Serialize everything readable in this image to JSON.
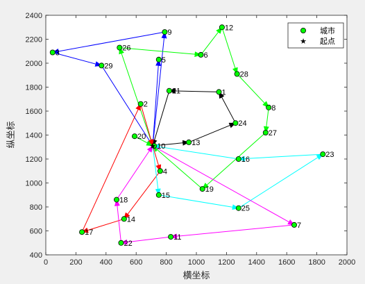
{
  "chart_data": {
    "type": "scatter",
    "title": "",
    "xlabel": "横坐标",
    "ylabel": "纵坐标",
    "xlim": [
      0,
      2000
    ],
    "ylim": [
      400,
      2400
    ],
    "xticks": [
      0,
      200,
      400,
      600,
      800,
      1000,
      1200,
      1400,
      1600,
      1800,
      2000
    ],
    "yticks": [
      400,
      600,
      800,
      1000,
      1200,
      1400,
      1600,
      1800,
      2000,
      2200,
      2400
    ],
    "grid": false,
    "legend": {
      "placement": "top-right",
      "entries": [
        {
          "label": "城市",
          "marker": "circle",
          "color": "#00ff00"
        },
        {
          "label": "起点",
          "marker": "star",
          "color": "#000000"
        }
      ]
    },
    "start": {
      "x": 710,
      "y": 1310
    },
    "cities": [
      {
        "id": "1",
        "x": 1150,
        "y": 1760
      },
      {
        "id": "2",
        "x": 630,
        "y": 1660
      },
      {
        "id": "3",
        "x": 45,
        "y": 2090
      },
      {
        "id": "4",
        "x": 760,
        "y": 1100
      },
      {
        "id": "5",
        "x": 750,
        "y": 2030
      },
      {
        "id": "6",
        "x": 1030,
        "y": 2070
      },
      {
        "id": "7",
        "x": 1650,
        "y": 650
      },
      {
        "id": "8",
        "x": 1480,
        "y": 1630
      },
      {
        "id": "9",
        "x": 790,
        "y": 2260
      },
      {
        "id": "10",
        "x": 720,
        "y": 1310
      },
      {
        "id": "11",
        "x": 830,
        "y": 550
      },
      {
        "id": "12",
        "x": 1170,
        "y": 2300
      },
      {
        "id": "13",
        "x": 950,
        "y": 1340
      },
      {
        "id": "14",
        "x": 520,
        "y": 700
      },
      {
        "id": "15",
        "x": 750,
        "y": 900
      },
      {
        "id": "16",
        "x": 1280,
        "y": 1200
      },
      {
        "id": "17",
        "x": 240,
        "y": 590
      },
      {
        "id": "18",
        "x": 470,
        "y": 860
      },
      {
        "id": "19",
        "x": 1040,
        "y": 950
      },
      {
        "id": "20",
        "x": 590,
        "y": 1390
      },
      {
        "id": "21",
        "x": 820,
        "y": 1770
      },
      {
        "id": "22",
        "x": 500,
        "y": 500
      },
      {
        "id": "23",
        "x": 1840,
        "y": 1240
      },
      {
        "id": "24",
        "x": 1260,
        "y": 1500
      },
      {
        "id": "25",
        "x": 1280,
        "y": 790
      },
      {
        "id": "26",
        "x": 490,
        "y": 2130
      },
      {
        "id": "27",
        "x": 1460,
        "y": 1420
      },
      {
        "id": "28",
        "x": 1270,
        "y": 1910
      },
      {
        "id": "29",
        "x": 370,
        "y": 1980
      }
    ],
    "routes": [
      {
        "color": "#000000",
        "path": [
          [
            710,
            1310
          ],
          [
            950,
            1340
          ]
        ]
      },
      {
        "color": "#000000",
        "path": [
          [
            950,
            1340
          ],
          [
            1260,
            1500
          ]
        ]
      },
      {
        "color": "#000000",
        "path": [
          [
            1260,
            1500
          ],
          [
            1150,
            1760
          ]
        ]
      },
      {
        "color": "#000000",
        "path": [
          [
            1150,
            1760
          ],
          [
            820,
            1770
          ]
        ]
      },
      {
        "color": "#000000",
        "path": [
          [
            820,
            1770
          ],
          [
            710,
            1310
          ]
        ]
      },
      {
        "color": "#0000ff",
        "path": [
          [
            710,
            1310
          ],
          [
            750,
            2030
          ]
        ]
      },
      {
        "color": "#0000ff",
        "path": [
          [
            710,
            1310
          ],
          [
            790,
            2260
          ]
        ]
      },
      {
        "color": "#0000ff",
        "path": [
          [
            790,
            2260
          ],
          [
            45,
            2090
          ]
        ]
      },
      {
        "color": "#0000ff",
        "path": [
          [
            45,
            2090
          ],
          [
            370,
            1980
          ]
        ]
      },
      {
        "color": "#0000ff",
        "path": [
          [
            370,
            1980
          ],
          [
            710,
            1310
          ]
        ]
      },
      {
        "color": "#00ff00",
        "path": [
          [
            710,
            1310
          ],
          [
            490,
            2130
          ]
        ]
      },
      {
        "color": "#00ff00",
        "path": [
          [
            490,
            2130
          ],
          [
            1030,
            2070
          ]
        ]
      },
      {
        "color": "#00ff00",
        "path": [
          [
            1030,
            2070
          ],
          [
            1170,
            2300
          ]
        ]
      },
      {
        "color": "#00ff00",
        "path": [
          [
            1170,
            2300
          ],
          [
            1270,
            1910
          ]
        ]
      },
      {
        "color": "#00ff00",
        "path": [
          [
            1270,
            1910
          ],
          [
            1480,
            1630
          ]
        ]
      },
      {
        "color": "#00ff00",
        "path": [
          [
            1480,
            1630
          ],
          [
            1460,
            1420
          ]
        ]
      },
      {
        "color": "#00ff00",
        "path": [
          [
            1460,
            1420
          ],
          [
            1040,
            950
          ]
        ]
      },
      {
        "color": "#00ff00",
        "path": [
          [
            1040,
            950
          ],
          [
            710,
            1310
          ]
        ]
      },
      {
        "color": "#00ff00",
        "path": [
          [
            590,
            1390
          ],
          [
            710,
            1310
          ]
        ]
      },
      {
        "color": "#ff0000",
        "path": [
          [
            710,
            1310
          ],
          [
            760,
            1100
          ]
        ]
      },
      {
        "color": "#ff0000",
        "path": [
          [
            760,
            1100
          ],
          [
            520,
            700
          ]
        ]
      },
      {
        "color": "#ff0000",
        "path": [
          [
            520,
            700
          ],
          [
            240,
            590
          ]
        ]
      },
      {
        "color": "#ff0000",
        "path": [
          [
            240,
            590
          ],
          [
            630,
            1660
          ]
        ]
      },
      {
        "color": "#ff0000",
        "path": [
          [
            630,
            1660
          ],
          [
            710,
            1310
          ]
        ]
      },
      {
        "color": "#00ffff",
        "path": [
          [
            710,
            1310
          ],
          [
            750,
            900
          ]
        ]
      },
      {
        "color": "#00ffff",
        "path": [
          [
            750,
            900
          ],
          [
            1280,
            790
          ]
        ]
      },
      {
        "color": "#00ffff",
        "path": [
          [
            1280,
            790
          ],
          [
            1840,
            1240
          ]
        ]
      },
      {
        "color": "#00ffff",
        "path": [
          [
            1840,
            1240
          ],
          [
            1280,
            1200
          ]
        ]
      },
      {
        "color": "#00ffff",
        "path": [
          [
            1280,
            1200
          ],
          [
            710,
            1310
          ]
        ]
      },
      {
        "color": "#ff00ff",
        "path": [
          [
            710,
            1310
          ],
          [
            1650,
            650
          ]
        ]
      },
      {
        "color": "#ff00ff",
        "path": [
          [
            1650,
            650
          ],
          [
            830,
            550
          ]
        ]
      },
      {
        "color": "#ff00ff",
        "path": [
          [
            830,
            550
          ],
          [
            500,
            500
          ]
        ]
      },
      {
        "color": "#ff00ff",
        "path": [
          [
            500,
            500
          ],
          [
            470,
            860
          ]
        ]
      },
      {
        "color": "#ff00ff",
        "path": [
          [
            470,
            860
          ],
          [
            710,
            1310
          ]
        ]
      }
    ]
  }
}
